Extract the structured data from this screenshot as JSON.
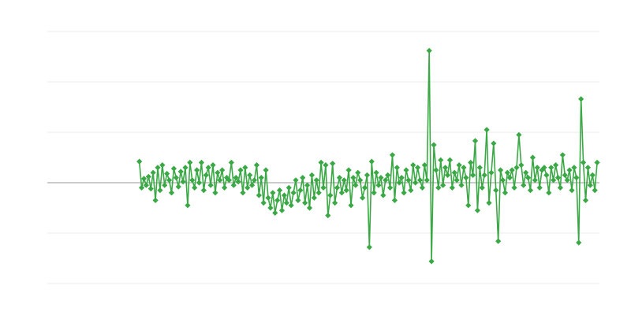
{
  "chart_data": {
    "type": "line",
    "x": [
      40,
      41,
      42,
      43,
      44,
      45,
      46,
      47,
      48,
      49,
      50,
      51,
      52,
      53,
      54,
      55,
      56,
      57,
      58,
      59,
      60,
      61,
      62,
      63,
      64,
      65,
      66,
      67,
      68,
      69,
      70,
      71,
      72,
      73,
      74,
      75,
      76,
      77,
      78,
      79,
      80,
      81,
      82,
      83,
      84,
      85,
      86,
      87,
      88,
      89,
      90,
      91,
      92,
      93,
      94,
      95,
      96,
      97,
      98,
      99,
      100,
      101,
      102,
      103,
      104,
      105,
      106,
      107,
      108,
      109,
      110,
      111,
      112,
      113,
      114,
      115,
      116,
      117,
      118,
      119,
      120,
      121,
      122,
      123,
      124,
      125,
      126,
      127,
      128,
      129,
      130,
      131,
      132,
      133,
      134,
      135,
      136,
      137,
      138,
      139,
      140,
      141,
      142,
      143,
      144,
      145,
      146,
      147,
      148,
      149,
      150,
      151,
      152,
      153,
      154,
      155,
      156,
      157,
      158,
      159,
      160,
      161,
      162,
      163,
      164,
      165,
      166,
      167,
      168,
      169,
      170,
      171,
      172,
      173,
      174,
      175,
      176,
      177,
      178,
      179,
      180,
      181,
      182,
      183,
      184,
      185,
      186,
      187,
      188,
      189,
      190,
      191,
      192,
      193,
      194,
      195,
      196,
      197,
      198,
      199,
      200,
      201,
      202,
      203,
      204,
      205,
      206,
      207,
      208,
      209,
      210,
      211,
      212,
      213,
      214,
      215,
      216,
      217,
      218,
      219,
      220,
      221,
      222,
      223,
      224,
      225,
      226,
      227,
      228,
      229,
      230,
      231,
      232,
      233,
      234,
      235,
      236,
      237,
      238,
      239
    ],
    "series": [
      {
        "color": "#3aa845",
        "values": [
          0.42,
          -0.1,
          0.08,
          -0.05,
          0.12,
          -0.12,
          0.2,
          -0.35,
          0.3,
          -0.15,
          0.35,
          -0.05,
          0.18,
          0.05,
          -0.2,
          0.28,
          0.1,
          -0.08,
          0.22,
          0.02,
          0.3,
          -0.45,
          0.4,
          0.05,
          -0.1,
          0.25,
          0.0,
          0.4,
          -0.15,
          0.15,
          0.3,
          -0.05,
          0.35,
          -0.2,
          0.2,
          0.05,
          0.25,
          -0.1,
          0.1,
          0.05,
          0.4,
          -0.05,
          0.1,
          0.02,
          0.25,
          -0.2,
          0.3,
          -0.1,
          0.15,
          -0.05,
          0.05,
          0.35,
          -0.25,
          0.1,
          -0.4,
          0.25,
          -0.3,
          -0.5,
          -0.2,
          -0.6,
          -0.35,
          -0.15,
          -0.55,
          -0.25,
          -0.4,
          -0.1,
          -0.45,
          -0.2,
          0.05,
          -0.35,
          -0.15,
          0.1,
          -0.4,
          -0.05,
          -0.5,
          0.15,
          -0.3,
          0.05,
          -0.2,
          0.4,
          -0.1,
          0.35,
          -0.65,
          -0.25,
          0.38,
          -0.4,
          -0.1,
          0.1,
          -0.2,
          0.05,
          -0.15,
          0.25,
          -0.45,
          0.1,
          -0.05,
          0.2,
          0.05,
          -0.3,
          -0.1,
          0.15,
          -1.28,
          0.42,
          -0.2,
          0.2,
          -0.05,
          0.1,
          -0.25,
          0.05,
          0.15,
          -0.1,
          0.55,
          -0.35,
          0.3,
          0.0,
          0.1,
          -0.2,
          0.25,
          0.05,
          -0.15,
          0.35,
          0.0,
          0.3,
          0.05,
          -0.1,
          0.35,
          0.05,
          2.62,
          -1.56,
          0.75,
          0.25,
          -0.1,
          0.45,
          -0.05,
          0.3,
          0.15,
          0.45,
          -0.1,
          0.2,
          0.05,
          0.35,
          -0.05,
          0.3,
          0.1,
          -0.45,
          0.4,
          0.15,
          0.83,
          -0.55,
          0.3,
          -0.1,
          0.15,
          1.05,
          -0.4,
          0.2,
          0.78,
          -0.15,
          -1.16,
          0.25,
          0.05,
          -0.2,
          0.2,
          0.1,
          0.25,
          -0.1,
          0.3,
          0.95,
          0.35,
          -0.05,
          0.2,
          0.1,
          -0.15,
          0.5,
          0.05,
          0.3,
          -0.1,
          0.25,
          0.3,
          0.15,
          -0.2,
          0.3,
          0.05,
          0.35,
          0.1,
          -0.1,
          0.55,
          0.15,
          0.05,
          0.25,
          -0.15,
          0.3,
          0.1,
          -1.19,
          1.66,
          0.4,
          -0.35,
          0.3,
          -0.05,
          0.15,
          -0.15,
          0.4
        ]
      }
    ],
    "xlim": [
      0,
      240
    ],
    "ylim": [
      -2,
      3
    ],
    "yticks": [
      -2,
      -1,
      0,
      1,
      2,
      3
    ],
    "grid": true,
    "zero_line": true,
    "tick_labels": false,
    "marker": "diamond"
  }
}
